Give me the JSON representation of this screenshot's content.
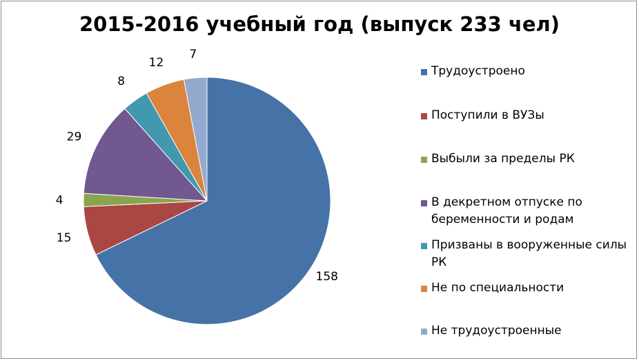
{
  "chart_data": {
    "type": "pie",
    "title": "2015-2016 учебный год (выпуск 233 чел)",
    "legend_position": "right",
    "slices": [
      {
        "name": "Трудоустроено",
        "value": 158,
        "label": "158",
        "color": "#4572a7"
      },
      {
        "name": "Поступили в ВУЗы",
        "value": 15,
        "label": "15",
        "color": "#aa4643"
      },
      {
        "name": "Выбыли за пределы РК",
        "value": 4,
        "label": "4",
        "color": "#89a54e"
      },
      {
        "name": "В декретном отпуске по беременности и родам",
        "value": 29,
        "label": "29",
        "color": "#71588f"
      },
      {
        "name": "Призваны в вооруженные силы РК",
        "value": 8,
        "label": "8",
        "color": "#4198af"
      },
      {
        "name": "Не по специальности",
        "value": 12,
        "label": "12",
        "color": "#db843d"
      },
      {
        "name": "Не трудоустроенные",
        "value": 7,
        "label": "7",
        "color": "#93a9cf"
      }
    ]
  }
}
